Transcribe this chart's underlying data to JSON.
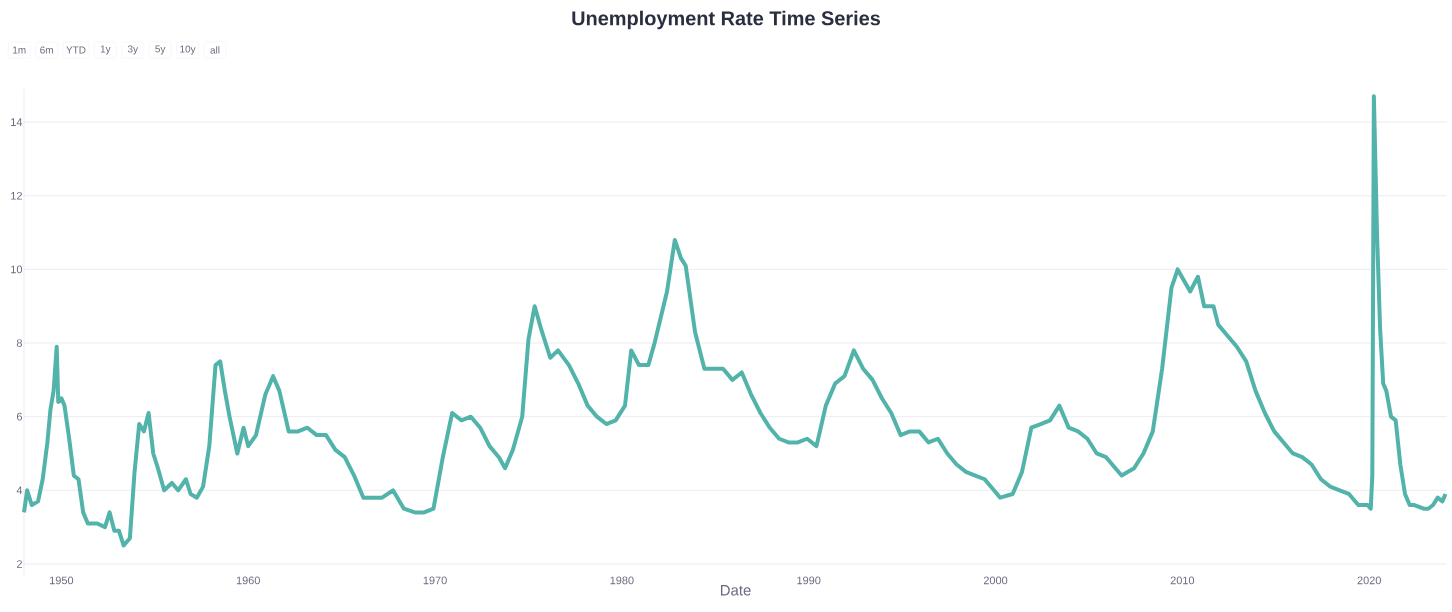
{
  "chart_data": {
    "type": "line",
    "title": "Unemployment Rate Time Series",
    "xlabel": "Date",
    "annotations": [
      "1m",
      "6m",
      "YTD",
      "1y",
      "3y",
      "5y",
      "10y",
      "all"
    ],
    "x": [
      "1948-01",
      "1948-03",
      "1948-06",
      "1948-10",
      "1949-01",
      "1949-04",
      "1949-06",
      "1949-08",
      "1949-10",
      "1949-11",
      "1950-01",
      "1950-03",
      "1950-06",
      "1950-09",
      "1950-12",
      "1951-03",
      "1951-06",
      "1951-12",
      "1952-05",
      "1952-08",
      "1952-11",
      "1953-02",
      "1953-05",
      "1953-09",
      "1953-12",
      "1954-03",
      "1954-06",
      "1954-09",
      "1954-12",
      "1955-03",
      "1955-07",
      "1955-12",
      "1956-04",
      "1956-09",
      "1956-12",
      "1957-04",
      "1957-08",
      "1957-12",
      "1958-04",
      "1958-07",
      "1958-10",
      "1959-01",
      "1959-06",
      "1959-10",
      "1960-01",
      "1960-06",
      "1960-12",
      "1961-05",
      "1961-09",
      "1962-03",
      "1962-09",
      "1963-03",
      "1963-09",
      "1964-03",
      "1964-09",
      "1965-03",
      "1965-09",
      "1966-03",
      "1966-09",
      "1967-03",
      "1967-10",
      "1968-05",
      "1968-12",
      "1969-06",
      "1969-12",
      "1970-06",
      "1970-12",
      "1971-06",
      "1971-12",
      "1972-06",
      "1972-12",
      "1973-06",
      "1973-10",
      "1974-03",
      "1974-09",
      "1975-01",
      "1975-05",
      "1975-09",
      "1976-03",
      "1976-08",
      "1977-03",
      "1977-09",
      "1978-03",
      "1978-09",
      "1979-03",
      "1979-09",
      "1980-03",
      "1980-07",
      "1980-12",
      "1981-06",
      "1981-10",
      "1982-06",
      "1982-11",
      "1983-03",
      "1983-06",
      "1983-12",
      "1984-06",
      "1984-12",
      "1985-06",
      "1985-12",
      "1986-06",
      "1986-12",
      "1987-06",
      "1987-12",
      "1988-06",
      "1988-12",
      "1989-06",
      "1989-12",
      "1990-06",
      "1990-12",
      "1991-06",
      "1991-12",
      "1992-06",
      "1992-12",
      "1993-06",
      "1993-12",
      "1994-06",
      "1994-12",
      "1995-06",
      "1995-12",
      "1996-06",
      "1996-12",
      "1997-06",
      "1997-12",
      "1998-06",
      "1998-12",
      "1999-06",
      "1999-12",
      "2000-04",
      "2000-12",
      "2001-06",
      "2001-12",
      "2002-06",
      "2002-12",
      "2003-06",
      "2003-12",
      "2004-06",
      "2004-12",
      "2005-06",
      "2005-12",
      "2006-06",
      "2006-10",
      "2007-06",
      "2007-12",
      "2008-06",
      "2008-12",
      "2009-06",
      "2009-10",
      "2010-06",
      "2010-11",
      "2011-03",
      "2011-09",
      "2011-12",
      "2012-06",
      "2012-12",
      "2013-06",
      "2013-12",
      "2014-06",
      "2014-12",
      "2015-06",
      "2015-12",
      "2016-06",
      "2016-12",
      "2017-06",
      "2017-12",
      "2018-06",
      "2018-12",
      "2019-06",
      "2019-12",
      "2020-02",
      "2020-03",
      "2020-04",
      "2020-06",
      "2020-08",
      "2020-10",
      "2020-12",
      "2021-03",
      "2021-06",
      "2021-09",
      "2021-12",
      "2022-03",
      "2022-06",
      "2022-12",
      "2023-03",
      "2023-06",
      "2023-09",
      "2023-12",
      "2024-02"
    ],
    "series": [
      {
        "color": "#52b3aa",
        "values": [
          3.4,
          4.0,
          3.6,
          3.7,
          4.3,
          5.3,
          6.2,
          6.7,
          7.9,
          6.4,
          6.5,
          6.3,
          5.4,
          4.4,
          4.3,
          3.4,
          3.1,
          3.1,
          3.0,
          3.4,
          2.9,
          2.9,
          2.5,
          2.7,
          4.5,
          5.8,
          5.6,
          6.1,
          5.0,
          4.6,
          4.0,
          4.2,
          4.0,
          4.3,
          3.9,
          3.8,
          4.1,
          5.2,
          7.4,
          7.5,
          6.7,
          6.0,
          5.0,
          5.7,
          5.2,
          5.5,
          6.6,
          7.1,
          6.7,
          5.6,
          5.6,
          5.7,
          5.5,
          5.5,
          5.1,
          4.9,
          4.4,
          3.8,
          3.8,
          3.8,
          4.0,
          3.5,
          3.4,
          3.4,
          3.5,
          4.9,
          6.1,
          5.9,
          6.0,
          5.7,
          5.2,
          4.9,
          4.6,
          5.1,
          6.0,
          8.1,
          9.0,
          8.4,
          7.6,
          7.8,
          7.4,
          6.9,
          6.3,
          6.0,
          5.8,
          5.9,
          6.3,
          7.8,
          7.4,
          7.4,
          8.0,
          9.4,
          10.8,
          10.3,
          10.1,
          8.3,
          7.3,
          7.3,
          7.3,
          7.0,
          7.2,
          6.6,
          6.1,
          5.7,
          5.4,
          5.3,
          5.3,
          5.4,
          5.2,
          6.3,
          6.9,
          7.1,
          7.8,
          7.3,
          7.0,
          6.5,
          6.1,
          5.5,
          5.6,
          5.6,
          5.3,
          5.4,
          5.0,
          4.7,
          4.5,
          4.4,
          4.3,
          4.0,
          3.8,
          3.9,
          4.5,
          5.7,
          5.8,
          5.9,
          6.3,
          5.7,
          5.6,
          5.4,
          5.0,
          4.9,
          4.6,
          4.4,
          4.6,
          5.0,
          5.6,
          7.3,
          9.5,
          10.0,
          9.4,
          9.8,
          9.0,
          9.0,
          8.5,
          8.2,
          7.9,
          7.5,
          6.7,
          6.1,
          5.6,
          5.3,
          5.0,
          4.9,
          4.7,
          4.3,
          4.1,
          4.0,
          3.9,
          3.6,
          3.6,
          3.5,
          4.4,
          14.7,
          11.0,
          8.4,
          6.9,
          6.7,
          6.0,
          5.9,
          4.7,
          3.9,
          3.6,
          3.6,
          3.5,
          3.5,
          3.6,
          3.8,
          3.7,
          3.9
        ]
      }
    ],
    "xlim": [
      "1948-01",
      "2024-03"
    ],
    "xticks": [
      "1950",
      "1960",
      "1970",
      "1980",
      "1990",
      "2000",
      "2010",
      "2020"
    ],
    "ylim": [
      1.7,
      14.9
    ],
    "yticks": [
      2,
      4,
      6,
      8,
      10,
      12,
      14
    ],
    "grid": "y"
  }
}
